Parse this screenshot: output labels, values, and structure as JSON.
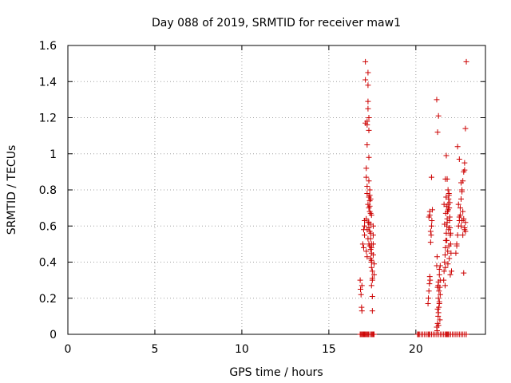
{
  "chart_data": {
    "type": "scatter",
    "title": "Day 088 of 2019, SRMTID for receiver maw1",
    "xlabel": "GPS time / hours",
    "ylabel": "SRMTID / TECUs",
    "xlim": [
      0,
      24
    ],
    "ylim": [
      0,
      1.6
    ],
    "xticks": [
      0,
      5,
      10,
      15,
      20
    ],
    "xtick_labels": [
      "0",
      "5",
      "10",
      "15",
      "20"
    ],
    "yticks": [
      0,
      0.2,
      0.4,
      0.6,
      0.8,
      1,
      1.2,
      1.4,
      1.6
    ],
    "ytick_labels": [
      "0",
      "0.2",
      "0.4",
      "0.6",
      "0.8",
      "1",
      "1.2",
      "1.4",
      "1.6"
    ],
    "grid": true,
    "marker": "+",
    "marker_color": "#cc0000",
    "series": [
      {
        "name": "SRMTID",
        "x": [
          16.8,
          16.85,
          16.9,
          16.95,
          17.0,
          17.05,
          17.1,
          17.15,
          17.2,
          17.25,
          17.3,
          17.4,
          17.45,
          17.5,
          17.55,
          17.6,
          16.8,
          16.82,
          16.85,
          16.88,
          16.9,
          16.9,
          16.95,
          17.0,
          17.0,
          17.05,
          17.05,
          17.05,
          17.1,
          17.1,
          17.1,
          17.15,
          17.15,
          17.15,
          17.2,
          17.2,
          17.2,
          17.2,
          17.2,
          17.25,
          17.25,
          17.25,
          17.25,
          17.3,
          17.3,
          17.3,
          17.3,
          17.3,
          17.3,
          17.35,
          17.35,
          17.35,
          17.35,
          17.4,
          17.4,
          17.4,
          17.4,
          17.4,
          17.45,
          17.45,
          17.45,
          17.45,
          17.45,
          17.5,
          17.5,
          17.5,
          17.5,
          17.55,
          17.55,
          17.55,
          17.55,
          17.6,
          17.6,
          17.15,
          17.2,
          17.25,
          17.3,
          17.35,
          17.4,
          17.4,
          17.45,
          17.35,
          17.25,
          17.25,
          17.3,
          17.35,
          17.45,
          17.5,
          17.45,
          17.2,
          17.3,
          20.1,
          20.15,
          20.2,
          20.3,
          20.4,
          20.5,
          20.6,
          20.7,
          20.75,
          20.8,
          20.9,
          21.0,
          21.1,
          21.2,
          21.3,
          21.4,
          21.5,
          21.6,
          21.7,
          21.75,
          21.8,
          21.85,
          21.9,
          22.0,
          22.1,
          22.2,
          22.3,
          22.4,
          22.5,
          22.6,
          22.7,
          22.8,
          22.9,
          20.7,
          20.72,
          20.75,
          20.78,
          20.8,
          20.82,
          20.85,
          20.88,
          20.9,
          20.92,
          20.95,
          20.8,
          20.85,
          20.75,
          20.9,
          20.8,
          21.2,
          21.22,
          21.25,
          21.28,
          21.3,
          21.32,
          21.35,
          21.38,
          21.4,
          21.25,
          21.3,
          21.35,
          21.2,
          21.3,
          21.25,
          21.35,
          21.4,
          21.28,
          21.33,
          21.22,
          21.4,
          21.3,
          21.25,
          21.35,
          21.3,
          21.38,
          21.2,
          21.6,
          21.62,
          21.65,
          21.68,
          21.7,
          21.72,
          21.75,
          21.78,
          21.8,
          21.82,
          21.85,
          21.88,
          21.9,
          21.92,
          21.95,
          21.98,
          22.0,
          22.02,
          22.05,
          21.7,
          21.75,
          21.8,
          21.85,
          21.9,
          21.95,
          21.65,
          21.72,
          21.88,
          21.78,
          21.83,
          21.92,
          21.68,
          21.98,
          21.74,
          21.86,
          21.94,
          21.76,
          21.9,
          21.84,
          21.7,
          22.0,
          21.8,
          21.96,
          21.62,
          22.3,
          22.35,
          22.4,
          22.45,
          22.5,
          22.55,
          22.6,
          22.65,
          22.7,
          22.75,
          22.8,
          22.85,
          22.4,
          22.5,
          22.6,
          22.7,
          22.8,
          22.45,
          22.55,
          22.65,
          22.75,
          22.85,
          22.35,
          22.6,
          22.7,
          22.8,
          22.5,
          22.75,
          22.85,
          22.65,
          22.8,
          22.9
        ],
        "y": [
          0,
          0,
          0,
          0,
          0,
          0,
          0,
          0,
          0,
          0,
          0,
          0,
          0,
          0,
          0,
          0,
          0.3,
          0.25,
          0.22,
          0.15,
          0.13,
          0.27,
          0.5,
          0.58,
          0.48,
          0.6,
          0.55,
          0.63,
          1.51,
          1.41,
          1.17,
          0.92,
          0.87,
          0.64,
          1.18,
          1.16,
          1.05,
          0.82,
          0.78,
          1.45,
          1.38,
          1.29,
          1.25,
          1.2,
          1.13,
          0.98,
          0.85,
          0.76,
          0.7,
          0.8,
          0.74,
          0.71,
          0.68,
          0.75,
          0.67,
          0.61,
          0.56,
          0.53,
          0.5,
          0.48,
          0.45,
          0.41,
          0.37,
          0.35,
          0.3,
          0.21,
          0.13,
          0.6,
          0.55,
          0.5,
          0.44,
          0.39,
          0.33,
          0.46,
          0.58,
          0.53,
          0.62,
          0.57,
          0.47,
          0.42,
          0.66,
          0.77,
          0.72,
          0.62,
          0.59,
          0.49,
          0.4,
          0.31,
          0.27,
          0.43,
          0.5,
          0,
          0,
          0,
          0,
          0,
          0,
          0,
          0,
          0,
          0,
          0,
          0,
          0,
          0,
          0,
          0,
          0,
          0,
          0,
          0,
          0,
          0,
          0,
          0,
          0,
          0,
          0,
          0,
          0,
          0,
          0,
          0,
          0,
          0.17,
          0.2,
          0.24,
          0.28,
          0.32,
          0.3,
          0.51,
          0.55,
          0.6,
          0.63,
          0.69,
          0.68,
          0.57,
          0.65,
          0.87,
          0.66,
          0.04,
          0.02,
          0.06,
          0.1,
          0.12,
          0.15,
          0.18,
          0.08,
          0.22,
          0.26,
          0.29,
          0.33,
          1.3,
          1.21,
          1.12,
          0.36,
          0.38,
          0.27,
          0.24,
          0.43,
          0.3,
          0.2,
          0.14,
          0.17,
          0.05,
          0.26,
          0.38,
          0.3,
          0.35,
          0.4,
          0.44,
          0.48,
          0.52,
          0.56,
          0.6,
          0.64,
          0.68,
          0.72,
          0.75,
          0.78,
          0.7,
          0.65,
          0.55,
          0.5,
          0.45,
          0.35,
          0.86,
          0.99,
          0.86,
          0.8,
          0.77,
          0.73,
          0.61,
          0.67,
          0.58,
          0.52,
          0.46,
          0.42,
          0.27,
          0.33,
          0.76,
          0.69,
          0.63,
          0.71,
          0.49,
          0.39,
          0.37,
          0.56,
          0.62,
          0.59,
          0.72,
          0.45,
          0.5,
          0.55,
          0.6,
          0.65,
          0.7,
          0.75,
          0.8,
          0.85,
          0.9,
          0.95,
          0.62,
          1.04,
          0.97,
          0.84,
          0.68,
          0.59,
          0.72,
          0.66,
          0.63,
          0.64,
          0.57,
          0.49,
          0.6,
          0.55,
          0.58,
          0.63,
          0.34,
          1.14,
          0.79,
          0.91,
          1.51
        ]
      }
    ]
  }
}
